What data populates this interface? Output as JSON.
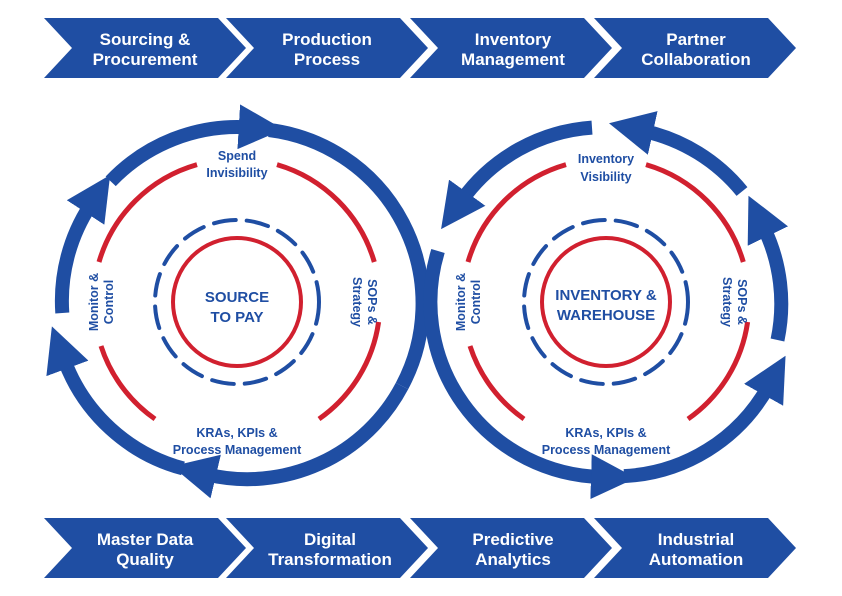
{
  "top_chevrons": [
    {
      "line1": "Sourcing &",
      "line2": "Procurement"
    },
    {
      "line1": "Production",
      "line2": "Process"
    },
    {
      "line1": "Inventory",
      "line2": "Management"
    },
    {
      "line1": "Partner",
      "line2": "Collaboration"
    }
  ],
  "bottom_chevrons": [
    {
      "line1": "Master Data",
      "line2": "Quality"
    },
    {
      "line1": "Digital",
      "line2": "Transformation"
    },
    {
      "line1": "Predictive",
      "line2": "Analytics"
    },
    {
      "line1": "Industrial",
      "line2": "Automation"
    }
  ],
  "left_cycle": {
    "core_line1": "SOURCE",
    "core_line2": "TO PAY",
    "top_line1": "Spend",
    "top_line2": "Invisibility",
    "right_line1": "SOPs &",
    "right_line2": "Strategy",
    "bottom_line1": "KRAs, KPIs &",
    "bottom_line2": "Process Management",
    "left_line1": "Monitor &",
    "left_line2": "Control"
  },
  "right_cycle": {
    "core_line1": "INVENTORY &",
    "core_line2": "WAREHOUSE",
    "top_line1": "Inventory",
    "top_line2": "Visibility",
    "right_line1": "SOPs &",
    "right_line2": "Strategy",
    "bottom_line1": "KRAs, KPIs &",
    "bottom_line2": "Process Management",
    "left_line1": "Monitor &",
    "left_line2": "Control"
  },
  "colors": {
    "blue": "#1f4ea3",
    "red": "#d1202f",
    "white": "#ffffff"
  }
}
